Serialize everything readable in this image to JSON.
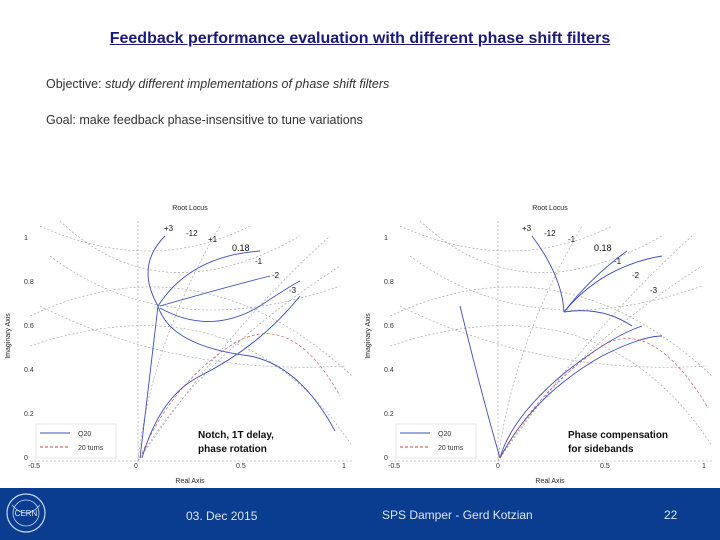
{
  "slide": {
    "title": "Feedback performance evaluation with different phase shift filters",
    "objective_label": "Objective: ",
    "objective_text": "study different implementations of phase shift filters",
    "goal": "Goal: make feedback phase-insensitive to tune variations"
  },
  "plots": [
    {
      "title": "Root Locus",
      "ylabel": "Imaginary Axis",
      "xlabel": "Real Axis",
      "yticks": [
        "1",
        "0.8",
        "0.6",
        "0.4",
        "0.2",
        "0"
      ],
      "xticks": [
        "-0.5",
        "0",
        "0.5",
        "1"
      ],
      "gain_labels": [
        "+3",
        "-12",
        "+1",
        "0.18",
        "-1",
        "-2",
        "-3"
      ],
      "legend": [
        "Q20",
        "20 turns"
      ],
      "caption_line1": "Notch, 1T delay,",
      "caption_line2": "phase rotation"
    },
    {
      "title": "Root Locus",
      "ylabel": "Imaginary Axis",
      "xlabel": "Real Axis",
      "yticks": [
        "1",
        "0.8",
        "0.6",
        "0.4",
        "0.2",
        "0"
      ],
      "xticks": [
        "-0.5",
        "0",
        "0.5",
        "1"
      ],
      "gain_labels": [
        "+3",
        "-12",
        "-1",
        "0.18",
        "-1",
        "-2",
        "-3"
      ],
      "legend": [
        "Q20",
        "20 turns"
      ],
      "caption_line1": "Phase compensation",
      "caption_line2": "for sidebands"
    }
  ],
  "footer": {
    "logo_text": "CERN",
    "date": "03. Dec 2015",
    "author": "SPS Damper - Gerd Kotzian",
    "page": "22"
  },
  "colors": {
    "title": "#1a1a7a",
    "footer_bg": "#0a3d8f",
    "locus_blue": "#3a4fc0",
    "locus_red": "#d04040",
    "grid_dots": "#999999"
  }
}
